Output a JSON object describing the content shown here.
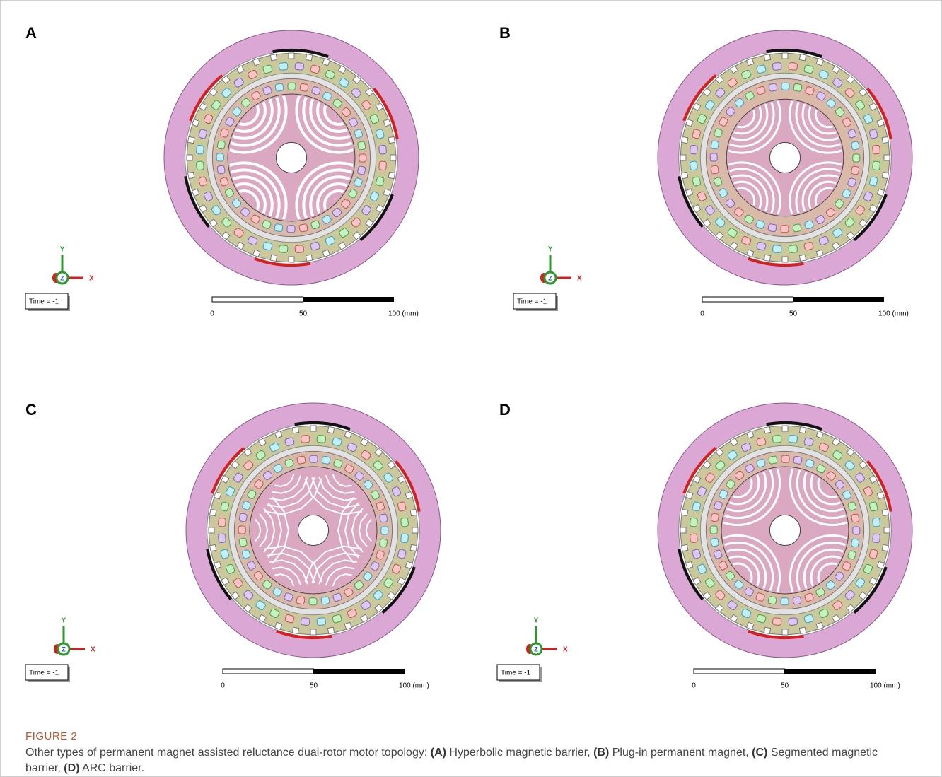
{
  "panels": [
    {
      "label": "A",
      "time": "Time = -1",
      "scale": [
        "0",
        "50",
        "100 (mm)"
      ],
      "axes": {
        "y": "Y",
        "z": "Z",
        "x": "X"
      }
    },
    {
      "label": "B",
      "time": "Time = -1",
      "scale": [
        "0",
        "50",
        "100 (mm)"
      ],
      "axes": {
        "y": "Y",
        "z": "Z",
        "x": "X"
      }
    },
    {
      "label": "C",
      "time": "Time = -1",
      "scale": [
        "0",
        "50",
        "100 (mm)"
      ],
      "axes": {
        "y": "Y",
        "z": "Z",
        "x": "X"
      }
    },
    {
      "label": "D",
      "time": "Time = -1",
      "scale": [
        "0",
        "50",
        "100 (mm)"
      ],
      "axes": {
        "y": "Y",
        "z": "Z",
        "x": "X"
      }
    }
  ],
  "caption": {
    "title": "FIGURE 2",
    "parts": [
      {
        "text": "Other types of permanent magnet assisted reluctance dual-rotor motor topology: ",
        "bold": false
      },
      {
        "text": "(A)",
        "bold": true
      },
      {
        "text": " Hyperbolic magnetic barrier, ",
        "bold": false
      },
      {
        "text": "(B)",
        "bold": true
      },
      {
        "text": " Plug-in permanent magnet, ",
        "bold": false
      },
      {
        "text": "(C)",
        "bold": true
      },
      {
        "text": " Segmented magnetic barrier, ",
        "bold": false
      },
      {
        "text": "(D)",
        "bold": true
      },
      {
        "text": " ARC barrier.",
        "bold": false
      }
    ]
  }
}
